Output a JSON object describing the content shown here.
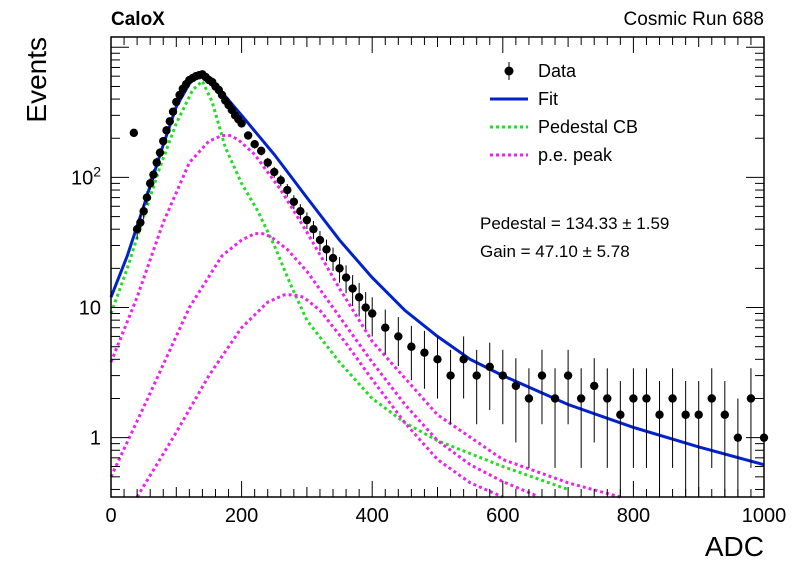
{
  "header": {
    "left_label": "CaloX",
    "right_label": "Cosmic Run 688"
  },
  "legend": [
    {
      "label": "Data",
      "style": "points",
      "color": "#000000"
    },
    {
      "label": "Fit",
      "style": "solid",
      "color": "#0022cc"
    },
    {
      "label": "Pedestal CB",
      "style": "dotted",
      "color": "#22dd22"
    },
    {
      "label": "p.e. peak",
      "style": "dotted",
      "color": "#ee22ee"
    }
  ],
  "stats": {
    "pedestal": "Pedestal = 134.33 ± 1.59",
    "gain": "Gain = 47.10 ± 5.78"
  },
  "chart_data": {
    "type": "scatter",
    "xlabel": "ADC",
    "ylabel": "Events",
    "xlim": [
      0,
      1000
    ],
    "ylim": [
      0.35,
      1200
    ],
    "yscale": "log",
    "x_ticks": [
      0,
      200,
      400,
      600,
      800,
      1000
    ],
    "y_ticks": [
      {
        "value": 1,
        "label": "1"
      },
      {
        "value": 10,
        "label": "10"
      },
      {
        "value": 100,
        "label": "10",
        "sup": "2"
      }
    ],
    "grid": false,
    "legend_position": "top-right",
    "fit_params": {
      "pedestal": 134.33,
      "pedestal_err": 1.59,
      "gain": 47.1,
      "gain_err": 5.78
    },
    "series": [
      {
        "name": "Data",
        "style": "points",
        "color": "#000000",
        "x": [
          35,
          40,
          45,
          50,
          55,
          60,
          65,
          70,
          75,
          80,
          85,
          90,
          95,
          100,
          105,
          110,
          115,
          120,
          125,
          130,
          135,
          140,
          145,
          150,
          155,
          160,
          165,
          170,
          175,
          180,
          185,
          190,
          195,
          200,
          210,
          220,
          230,
          240,
          250,
          260,
          270,
          280,
          290,
          300,
          310,
          320,
          330,
          340,
          350,
          360,
          370,
          380,
          390,
          400,
          420,
          440,
          460,
          480,
          500,
          520,
          540,
          560,
          580,
          600,
          620,
          640,
          660,
          680,
          700,
          720,
          740,
          760,
          780,
          800,
          820,
          840,
          860,
          880,
          900,
          920,
          940,
          960,
          980,
          1000
        ],
        "y": [
          220,
          40,
          45,
          55,
          70,
          90,
          105,
          130,
          155,
          190,
          230,
          270,
          320,
          380,
          430,
          480,
          520,
          560,
          580,
          600,
          610,
          620,
          590,
          560,
          540,
          500,
          470,
          430,
          390,
          360,
          330,
          300,
          280,
          260,
          210,
          180,
          160,
          130,
          110,
          95,
          80,
          65,
          55,
          47,
          40,
          33,
          28,
          24,
          20,
          17,
          14,
          12,
          10,
          9,
          7,
          6,
          5,
          4.5,
          4,
          3,
          4,
          3,
          3.5,
          3,
          2.5,
          2,
          3,
          2,
          3,
          2,
          2.5,
          2,
          1.5,
          2,
          2,
          1.5,
          2,
          1.5,
          1.5,
          2,
          1.5,
          1,
          2,
          1
        ]
      },
      {
        "name": "Fit",
        "style": "line",
        "color": "#0022cc",
        "x": [
          0,
          25,
          50,
          75,
          100,
          125,
          140,
          150,
          175,
          200,
          250,
          300,
          350,
          400,
          450,
          500,
          550,
          600,
          700,
          800,
          900,
          1000
        ],
        "y": [
          12,
          25,
          60,
          150,
          350,
          580,
          620,
          560,
          420,
          300,
          150,
          70,
          33,
          17,
          9.5,
          6,
          4,
          3,
          1.8,
          1.2,
          0.85,
          0.62
        ]
      },
      {
        "name": "Pedestal CB",
        "style": "dotted",
        "color": "#22dd22",
        "x": [
          0,
          25,
          50,
          75,
          100,
          125,
          140,
          155,
          175,
          200,
          225,
          250,
          275,
          300,
          325,
          350,
          400,
          450,
          500,
          600,
          700
        ],
        "y": [
          9,
          20,
          50,
          120,
          260,
          470,
          550,
          380,
          170,
          90,
          55,
          30,
          15,
          8,
          5.5,
          3.8,
          2,
          1.3,
          0.95,
          0.6,
          0.4
        ]
      },
      {
        "name": "p.e. peak 1",
        "style": "dotted",
        "color": "#ee22ee",
        "x": [
          0,
          40,
          80,
          120,
          150,
          170,
          182,
          195,
          220,
          260,
          300,
          350,
          400,
          500,
          600,
          700,
          780
        ],
        "y": [
          3.8,
          12,
          45,
          130,
          190,
          210,
          210,
          195,
          150,
          80,
          38,
          14,
          5.5,
          1.5,
          0.68,
          0.45,
          0.35
        ]
      },
      {
        "name": "p.e. peak 2",
        "style": "dotted",
        "color": "#ee22ee",
        "x": [
          0,
          60,
          120,
          170,
          200,
          220,
          232,
          245,
          270,
          300,
          350,
          400,
          450,
          500,
          550,
          600,
          650
        ],
        "y": [
          0.5,
          2.2,
          10,
          25,
          33,
          37,
          37,
          35,
          28,
          19,
          8.5,
          3.8,
          1.8,
          0.95,
          0.62,
          0.46,
          0.36
        ]
      },
      {
        "name": "p.e. peak 3",
        "style": "dotted",
        "color": "#ee22ee",
        "x": [
          40,
          100,
          150,
          200,
          240,
          265,
          280,
          295,
          320,
          360,
          400,
          450,
          500,
          550,
          600
        ],
        "y": [
          0.35,
          1.1,
          3,
          7,
          11,
          12.5,
          12.5,
          12,
          9.5,
          5.3,
          2.8,
          1.3,
          0.68,
          0.45,
          0.35
        ]
      }
    ]
  }
}
